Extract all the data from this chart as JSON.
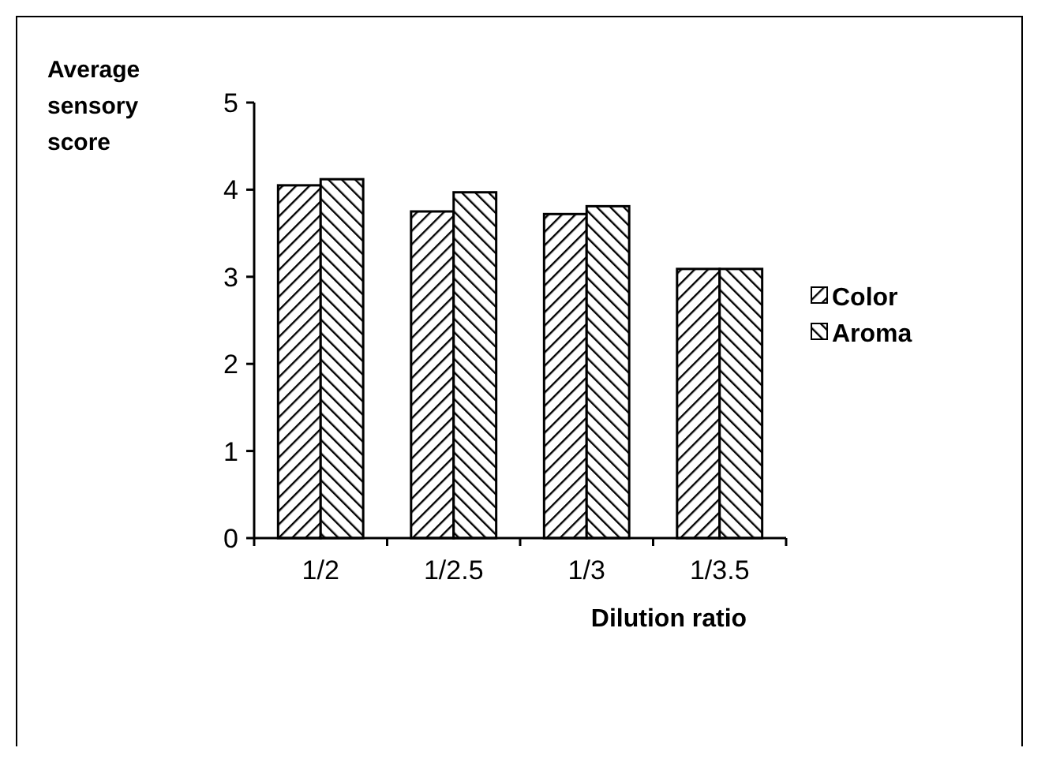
{
  "chart_data": {
    "type": "bar",
    "xlabel": "Dilution ratio",
    "ylabel": "Average sensory score",
    "categories": [
      "1/2",
      "1/2.5",
      "1/3",
      "1/3.5"
    ],
    "series": [
      {
        "name": "Color",
        "color": "#000000",
        "values": [
          4.05,
          3.75,
          3.72,
          3.09
        ]
      },
      {
        "name": "Aroma",
        "color": "#000000",
        "values": [
          4.12,
          3.97,
          3.81,
          3.09
        ]
      }
    ],
    "ylim": [
      0,
      5
    ],
    "yticks": [
      0,
      1,
      2,
      3,
      4,
      5
    ],
    "grid": false,
    "legend": "right"
  }
}
